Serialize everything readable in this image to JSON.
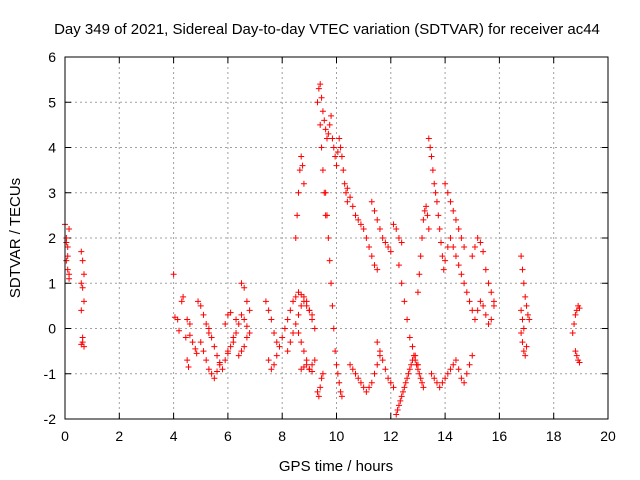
{
  "chart_data": {
    "type": "scatter",
    "title": "Day 349 of 2021, Sidereal Day-to-day VTEC variation (SDTVAR) for receiver ac44",
    "xlabel": "GPS time / hours",
    "ylabel": "SDTVAR / TECUs",
    "xlim": [
      0,
      20
    ],
    "ylim": [
      -2,
      6
    ],
    "xticks": [
      "0",
      "2",
      "4",
      "6",
      "8",
      "10",
      "12",
      "14",
      "16",
      "18",
      "20"
    ],
    "yticks": [
      "-2",
      "-1",
      "0",
      "1",
      "2",
      "3",
      "4",
      "5",
      "6"
    ],
    "grid": true,
    "marker": "+",
    "colors": {
      "series": "#ff0000",
      "grid": "#a0a0a0",
      "axis": "#000000"
    },
    "series": [
      {
        "name": "SDTVAR",
        "x": [
          0.0,
          0.05,
          0.1,
          0.15,
          0.05,
          0.1,
          0.15,
          0.05,
          0.1,
          0.15,
          0.6,
          0.65,
          0.7,
          0.6,
          0.65,
          0.7,
          0.6,
          0.65,
          0.7,
          0.6,
          0.65,
          4.0,
          4.05,
          4.15,
          4.2,
          4.3,
          4.35,
          4.45,
          4.5,
          4.55,
          4.6,
          4.5,
          4.6,
          4.7,
          4.8,
          4.85,
          4.9,
          5.0,
          5.1,
          5.2,
          5.3,
          5.0,
          5.1,
          5.2,
          5.3,
          5.4,
          5.5,
          5.6,
          5.7,
          5.3,
          5.4,
          5.5,
          5.6,
          5.7,
          5.8,
          5.9,
          6.0,
          6.1,
          6.2,
          6.3,
          6.4,
          6.5,
          6.6,
          6.7,
          6.8,
          6.0,
          6.2,
          6.4,
          6.5,
          6.6,
          6.7,
          5.9,
          6.0,
          6.1,
          6.3,
          6.5,
          6.6,
          6.7,
          6.8,
          7.4,
          7.5,
          7.6,
          7.7,
          7.8,
          7.5,
          7.6,
          7.7,
          7.8,
          7.9,
          8.0,
          8.1,
          8.2,
          8.3,
          8.4,
          8.5,
          8.6,
          8.7,
          8.8,
          8.9,
          9.0,
          9.1,
          8.6,
          8.7,
          8.8,
          8.9,
          9.0,
          9.1,
          8.2,
          8.3,
          8.4,
          8.5,
          8.6,
          8.7,
          8.8,
          8.9,
          9.0,
          9.1,
          9.2,
          8.7,
          8.8,
          8.9,
          9.0,
          9.1,
          9.2,
          8.5,
          8.55,
          8.6,
          8.65,
          8.7,
          8.75,
          8.8,
          9.3,
          9.35,
          9.4,
          9.45,
          9.5,
          9.55,
          9.6,
          9.65,
          9.7,
          9.75,
          9.8,
          9.85,
          9.9,
          9.95,
          10.0,
          10.05,
          10.1,
          10.15,
          10.2,
          10.25,
          10.3,
          10.35,
          10.4,
          9.6,
          9.65,
          9.7,
          9.75,
          9.8,
          9.85,
          9.9,
          9.95,
          10.0,
          10.05,
          10.1,
          10.15,
          10.2,
          9.4,
          9.45,
          9.5,
          9.55,
          9.6,
          9.3,
          9.35,
          9.4,
          9.45,
          9.5,
          10.4,
          10.5,
          10.6,
          10.7,
          10.8,
          10.9,
          11.0,
          11.1,
          11.2,
          11.3,
          11.4,
          11.5,
          10.5,
          10.6,
          10.7,
          10.8,
          10.9,
          11.0,
          11.1,
          11.2,
          11.3,
          11.4,
          11.5,
          11.6,
          11.3,
          11.4,
          11.5,
          11.6,
          11.7,
          11.8,
          11.9,
          12.0,
          12.1,
          12.2,
          12.3,
          12.4,
          11.5,
          11.6,
          11.7,
          11.8,
          11.9,
          12.0,
          12.1,
          12.2,
          12.25,
          12.3,
          12.35,
          12.4,
          12.45,
          12.5,
          12.55,
          12.6,
          12.65,
          12.7,
          12.75,
          12.8,
          12.85,
          12.9,
          12.95,
          13.0,
          13.05,
          13.1,
          13.15,
          13.2,
          12.3,
          12.4,
          12.5,
          12.6,
          12.7,
          12.8,
          12.9,
          13.0,
          13.0,
          13.05,
          13.1,
          13.15,
          13.2,
          13.25,
          13.3,
          13.35,
          13.4,
          13.4,
          13.45,
          13.5,
          13.55,
          13.6,
          13.65,
          13.7,
          13.75,
          13.8,
          13.85,
          13.9,
          13.95,
          14.0,
          14.1,
          14.2,
          14.3,
          14.4,
          14.5,
          14.6,
          14.7,
          14.8,
          14.9,
          15.0,
          13.5,
          13.6,
          13.7,
          13.8,
          13.9,
          14.0,
          14.1,
          14.2,
          14.3,
          14.4,
          14.5,
          14.6,
          14.7,
          14.8,
          14.9,
          15.0,
          14.0,
          14.1,
          14.2,
          14.3,
          14.4,
          14.5,
          14.6,
          14.7,
          15.0,
          15.1,
          15.2,
          15.3,
          15.4,
          15.5,
          15.6,
          15.7,
          15.8,
          15.1,
          15.2,
          15.3,
          15.4,
          15.5,
          15.6,
          15.7,
          15.8,
          16.8,
          16.85,
          16.9,
          16.95,
          17.0,
          17.05,
          17.1,
          16.8,
          16.85,
          16.9,
          16.95,
          17.0,
          16.8,
          16.85,
          16.9,
          18.7,
          18.75,
          18.8,
          18.85,
          18.9,
          18.95,
          18.8,
          18.85,
          18.9,
          18.95
        ],
        "y": [
          2.3,
          2.0,
          1.8,
          1.1,
          1.5,
          1.3,
          2.2,
          1.9,
          1.6,
          1.2,
          1.7,
          1.5,
          1.2,
          0.4,
          -0.3,
          -0.4,
          1.0,
          0.9,
          0.6,
          -0.35,
          -0.2,
          1.2,
          0.25,
          0.2,
          -0.05,
          0.6,
          0.7,
          -0.2,
          -0.7,
          -0.85,
          -0.15,
          0.2,
          0.1,
          -0.3,
          -0.45,
          -0.55,
          0.6,
          0.5,
          0.3,
          0.1,
          -0.1,
          -0.3,
          -0.5,
          -0.7,
          -0.9,
          -1.0,
          -1.1,
          -0.95,
          -0.75,
          0.0,
          -0.2,
          -0.4,
          -0.6,
          -0.8,
          -0.9,
          -0.7,
          -0.55,
          -0.4,
          -0.2,
          -0.1,
          0.1,
          0.3,
          0.2,
          0.05,
          -0.1,
          -0.5,
          -0.3,
          -0.6,
          -0.5,
          -0.4,
          -0.2,
          0.1,
          0.3,
          0.35,
          0.2,
          1.0,
          0.9,
          0.6,
          0.4,
          0.6,
          0.4,
          0.2,
          -0.1,
          -0.3,
          -0.7,
          -0.9,
          -0.8,
          -0.6,
          -0.4,
          -0.2,
          0.0,
          0.2,
          0.4,
          0.6,
          0.7,
          0.8,
          0.75,
          0.6,
          0.5,
          0.4,
          0.3,
          -0.1,
          -0.3,
          -0.5,
          -0.7,
          -0.9,
          -0.8,
          -0.5,
          -0.3,
          -0.1,
          0.1,
          0.3,
          0.5,
          0.7,
          0.6,
          0.4,
          0.2,
          0.0,
          -0.9,
          -0.85,
          -0.8,
          -0.9,
          -0.95,
          -0.7,
          2.0,
          2.5,
          3.0,
          3.5,
          3.8,
          3.6,
          3.2,
          5.0,
          5.3,
          5.4,
          5.1,
          4.8,
          4.6,
          4.4,
          4.2,
          4.3,
          4.5,
          4.7,
          4.2,
          4.0,
          3.8,
          3.6,
          3.9,
          4.2,
          4.0,
          3.8,
          3.5,
          3.2,
          3.0,
          2.8,
          3.0,
          2.5,
          2.0,
          1.5,
          1.0,
          0.5,
          0.0,
          -0.5,
          -0.8,
          -1.0,
          -1.2,
          -1.4,
          -1.5,
          4.5,
          4.0,
          3.5,
          3.0,
          2.5,
          -1.4,
          -1.5,
          -1.3,
          -1.1,
          -1.0,
          3.1,
          2.9,
          2.7,
          2.5,
          2.4,
          2.3,
          2.2,
          2.0,
          1.8,
          1.6,
          1.4,
          1.3,
          -0.8,
          -0.9,
          -1.0,
          -1.1,
          -1.2,
          -1.3,
          -1.4,
          -1.3,
          -1.2,
          -1.0,
          -0.8,
          -0.6,
          2.8,
          2.6,
          2.4,
          2.2,
          2.0,
          1.9,
          1.8,
          1.7,
          2.3,
          2.2,
          2.0,
          1.9,
          -0.3,
          -0.5,
          -0.7,
          -0.9,
          -1.1,
          -1.2,
          -1.3,
          -1.9,
          -1.8,
          -1.7,
          -1.6,
          -1.5,
          -1.4,
          -1.3,
          -1.2,
          -1.1,
          -1.0,
          -0.9,
          -0.8,
          -0.7,
          -0.6,
          -0.7,
          -0.8,
          -0.9,
          -1.0,
          -1.1,
          -1.2,
          -1.3,
          1.4,
          1.0,
          0.6,
          0.2,
          -0.2,
          -0.4,
          -0.6,
          -0.8,
          0.8,
          1.2,
          1.6,
          2.0,
          2.4,
          2.6,
          2.7,
          2.5,
          2.2,
          4.2,
          4.0,
          3.8,
          3.5,
          3.2,
          3.0,
          2.8,
          2.5,
          2.2,
          1.9,
          1.6,
          1.3,
          1.5,
          1.8,
          2.0,
          1.8,
          1.6,
          1.4,
          1.2,
          1.0,
          0.8,
          0.6,
          0.4,
          -1.0,
          -1.1,
          -1.2,
          -1.3,
          -1.2,
          -1.1,
          -1.0,
          -0.9,
          -0.8,
          -0.7,
          -0.9,
          -1.1,
          -1.2,
          -1.0,
          -0.8,
          -0.6,
          3.2,
          3.0,
          2.8,
          2.6,
          2.4,
          2.2,
          2.0,
          1.8,
          1.6,
          1.8,
          2.0,
          1.9,
          1.7,
          1.3,
          1.0,
          0.8,
          0.6,
          0.2,
          0.4,
          0.6,
          0.5,
          0.3,
          0.1,
          0.2,
          0.5,
          1.6,
          1.3,
          1.0,
          0.7,
          0.5,
          0.3,
          0.2,
          -0.1,
          -0.3,
          -0.5,
          -0.6,
          -0.4,
          0.4,
          0.2,
          0.0,
          -0.1,
          0.1,
          0.3,
          0.4,
          0.5,
          0.45,
          -0.5,
          -0.6,
          -0.7,
          -0.75
        ]
      }
    ]
  }
}
